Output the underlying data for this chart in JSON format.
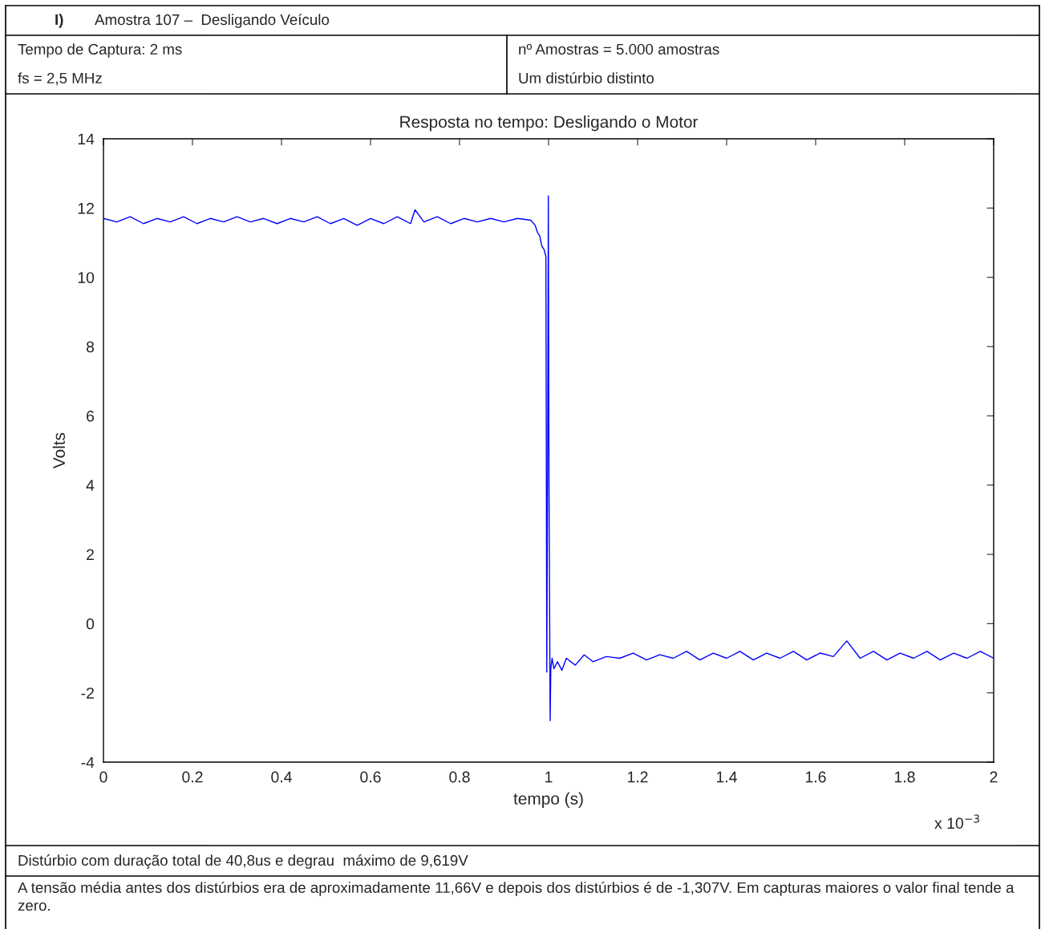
{
  "chart_data": {
    "type": "line",
    "title": "Resposta no tempo: Desligando o Motor",
    "xlabel": "tempo (s)",
    "ylabel": "Volts",
    "annotations": [
      "I)",
      "Amostra 107 –  Desligando Veículo",
      "Tempo de Captura: 2 ms",
      "fs = 2,5 MHz",
      "nº Amostras = 5.000 amostras",
      "Um distúrbio distinto",
      "x 10$^{−3}$",
      "Distúrbio com duração total de 40,8us e degrau  máximo de 9,619V",
      "A tensão média antes dos distúrbios era de aproximadamente 11,66V e depois dos distúrbios é de -1,307V. Em capturas maiores o valor final tende a zero."
    ],
    "series": [
      {
        "color": "#0000ff",
        "x": [
          0,
          0.03,
          0.06,
          0.09,
          0.12,
          0.15,
          0.18,
          0.21,
          0.24,
          0.27,
          0.3,
          0.33,
          0.36,
          0.39,
          0.42,
          0.45,
          0.48,
          0.51,
          0.54,
          0.57,
          0.6,
          0.63,
          0.66,
          0.69,
          0.7,
          0.72,
          0.75,
          0.78,
          0.81,
          0.84,
          0.87,
          0.9,
          0.93,
          0.96,
          0.97,
          0.975,
          0.98,
          0.985,
          0.99,
          0.994,
          0.996,
          0.998,
          0.9995,
          1.001,
          1.0036,
          1.005,
          1.008,
          1.012,
          1.02,
          1.03,
          1.04,
          1.06,
          1.08,
          1.1,
          1.13,
          1.16,
          1.19,
          1.22,
          1.25,
          1.28,
          1.31,
          1.34,
          1.37,
          1.4,
          1.43,
          1.46,
          1.49,
          1.52,
          1.55,
          1.58,
          1.61,
          1.64,
          1.67,
          1.7,
          1.73,
          1.76,
          1.79,
          1.82,
          1.85,
          1.88,
          1.91,
          1.94,
          1.97,
          2.0
        ],
        "values": [
          11.7,
          11.6,
          11.75,
          11.55,
          11.7,
          11.6,
          11.75,
          11.55,
          11.7,
          11.6,
          11.75,
          11.6,
          11.7,
          11.55,
          11.7,
          11.6,
          11.75,
          11.55,
          11.7,
          11.5,
          11.7,
          11.55,
          11.75,
          11.55,
          11.95,
          11.6,
          11.75,
          11.55,
          11.7,
          11.6,
          11.7,
          11.6,
          11.7,
          11.65,
          11.5,
          11.3,
          11.2,
          10.9,
          10.8,
          10.6,
          -1.4,
          5,
          12.35,
          4,
          -2.8,
          -1.3,
          -1.0,
          -1.3,
          -1.1,
          -1.35,
          -1.0,
          -1.2,
          -0.9,
          -1.1,
          -0.95,
          -1.0,
          -0.85,
          -1.05,
          -0.9,
          -1.0,
          -0.8,
          -1.05,
          -0.85,
          -1.0,
          -0.8,
          -1.05,
          -0.85,
          -1.0,
          -0.8,
          -1.05,
          -0.85,
          -0.95,
          -0.5,
          -1.0,
          -0.8,
          -1.05,
          -0.85,
          -1.0,
          -0.8,
          -1.05,
          -0.85,
          -1.0,
          -0.8,
          -1.0
        ]
      }
    ],
    "xlim": [
      0,
      2
    ],
    "xticks": [
      0,
      0.2,
      0.4,
      0.6,
      0.8,
      1,
      1.2,
      1.4,
      1.6,
      1.8,
      2
    ],
    "ylim": [
      -4,
      14
    ],
    "yticks": [
      -4,
      -2,
      0,
      2,
      4,
      6,
      8,
      10,
      12,
      14
    ],
    "grid": false,
    "legend": false
  }
}
